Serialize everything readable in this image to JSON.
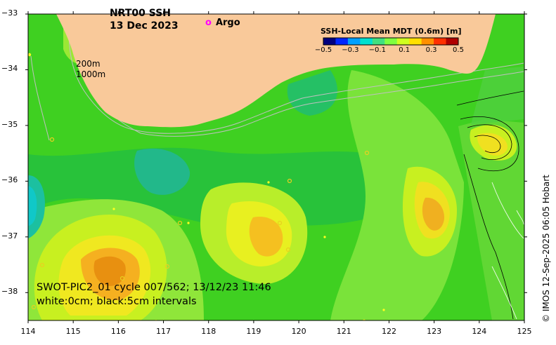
{
  "title": {
    "product": "NRT00 SSH",
    "date": "13 Dec 2023"
  },
  "legend": {
    "argo_marker": "o",
    "argo_label": "Argo"
  },
  "depth_labels": {
    "shallow": "200m",
    "deep": "1000m"
  },
  "colorbar": {
    "title": "SSH-Local Mean MDT (0.6m) [m]",
    "ticks": [
      "−0.5",
      "−0.3",
      "−0.1",
      "0.1",
      "0.3",
      "0.5"
    ],
    "colors": [
      "#00007f",
      "#0026ff",
      "#00a0ff",
      "#00e0d0",
      "#40e080",
      "#80ff40",
      "#d0ff20",
      "#ffe000",
      "#ff9000",
      "#ff3000",
      "#b00000"
    ]
  },
  "annotation": {
    "line1": "SWOT-PIC2_01 cycle 007/562; 13/12/23 11:46",
    "line2": "white:0cm; black:5cm intervals"
  },
  "credit": "© IMOS 12-Sep-2025 06:05 Hobart",
  "axes": {
    "lon_ticks": [
      "114",
      "115",
      "116",
      "117",
      "118",
      "119",
      "120",
      "121",
      "122",
      "123",
      "124",
      "125"
    ],
    "lat_ticks": [
      "−33",
      "−34",
      "−35",
      "−36",
      "−37",
      "−38"
    ],
    "lon_range": [
      114,
      125
    ],
    "lat_range": [
      -38.5,
      -33
    ]
  },
  "colors": {
    "land": "#f9c99a",
    "sea_base": "#40d020",
    "argo": "#ff00ff"
  }
}
